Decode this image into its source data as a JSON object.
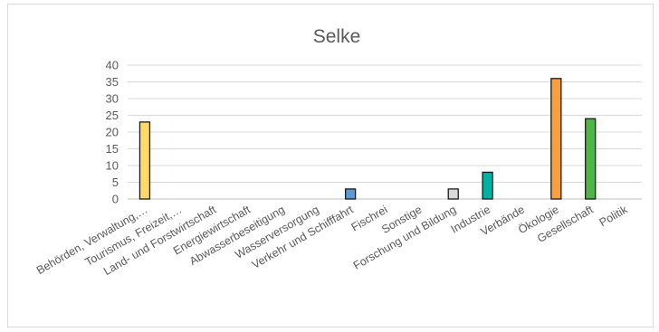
{
  "chart_data": {
    "type": "bar",
    "title": "Selke",
    "xlabel": "",
    "ylabel": "",
    "ylim": [
      0,
      40
    ],
    "yticks": [
      0,
      5,
      10,
      15,
      20,
      25,
      30,
      35,
      40
    ],
    "grid": true,
    "legend": "none",
    "categories": [
      "Behörden, Verwaltung,…",
      "Tourismus, Freizeit,…",
      "Land- und Forstwirtschaft",
      "Energiewirtschaft",
      "Abwasserbeseitigung",
      "Wasserversorgung",
      "Verkehr und Schifffahrt",
      "Fischrei",
      "Sonstige",
      "Forschung und Bildung",
      "Industrie",
      "Verbände",
      "Ökologie",
      "Gesellschaft",
      "Politik"
    ],
    "values": [
      23,
      0,
      0,
      0,
      0,
      0,
      3,
      0,
      0,
      3,
      8,
      0,
      36,
      24,
      0
    ],
    "colors": [
      "#ffd966",
      "#ffd966",
      "#ffd966",
      "#ffd966",
      "#ffd966",
      "#ffd966",
      "#5b9bd5",
      "#5b9bd5",
      "#5b9bd5",
      "#d9d9d9",
      "#00b0a0",
      "#00b0a0",
      "#f4a043",
      "#4fb549",
      "#4fb549"
    ]
  }
}
